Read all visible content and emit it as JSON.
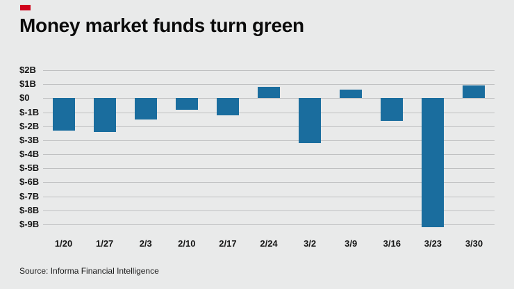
{
  "page": {
    "title": "Money market funds turn green",
    "source": "Source: Informa Financial Intelligence",
    "accent_color": "#d0021b",
    "background_color": "#e9eaea"
  },
  "chart_data": {
    "type": "bar",
    "title": "Money market funds turn green",
    "categories": [
      "1/20",
      "1/27",
      "2/3",
      "2/10",
      "2/17",
      "2/24",
      "3/2",
      "3/9",
      "3/16",
      "3/23",
      "3/30"
    ],
    "values": [
      -2.3,
      -2.4,
      -1.5,
      -0.8,
      -1.2,
      0.8,
      -3.2,
      0.6,
      -1.6,
      -9.2,
      0.9
    ],
    "ylim": [
      -9,
      2
    ],
    "ytick_step": 1,
    "ytick_labels": [
      "$2B",
      "$1B",
      "$0",
      "$-1B",
      "$-2B",
      "$-3B",
      "$-4B",
      "$-5B",
      "$-6B",
      "$-7B",
      "$-8B",
      "$-9B"
    ],
    "xlabel": "",
    "ylabel": "",
    "grid": true,
    "legend": null,
    "bar_color": "#1a6d9e",
    "grid_color": "#bfc0c1"
  }
}
